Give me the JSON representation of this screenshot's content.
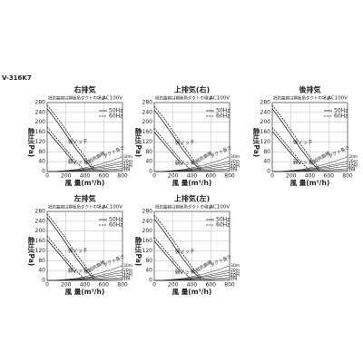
{
  "model": "V-316K7",
  "chart_data": [
    {
      "type": "line",
      "title": "右排気",
      "subtitle": "抵抗曲線は鋼板角ダクトの場合",
      "voltage": "AC100V",
      "xlabel": "風 量(m³/h)",
      "ylabel": "静圧(Pa)",
      "x": [
        0,
        100,
        200,
        300,
        400,
        500,
        600,
        700,
        800
      ],
      "xlim": [
        0,
        800
      ],
      "ylim": [
        0,
        280
      ],
      "xticks": [
        0,
        200,
        400,
        600,
        800
      ],
      "yticks": [
        0,
        40,
        80,
        120,
        160,
        200,
        240,
        280
      ],
      "grid": true,
      "color": "#222222",
      "legend": [
        {
          "name": "50Hz",
          "style": "solid"
        },
        {
          "name": "60Hz",
          "style": "dashed"
        }
      ],
      "notches": [
        {
          "label": "強ノッチ",
          "values": [
            [
              255,
              205,
              150,
              95,
              45,
              5,
              null,
              null,
              null
            ],
            [
              270,
              222,
              168,
              113,
              60,
              14,
              null,
              null,
              null
            ]
          ]
        },
        {
          "label": "弱ノッチ",
          "values": [
            [
              165,
              120,
              75,
              30,
              null,
              null,
              null,
              null,
              null
            ],
            [
              180,
              135,
              88,
              42,
              5,
              null,
              null,
              null,
              null
            ]
          ]
        }
      ],
      "annotations": [
        "ダクト長さ",
        "低抵抗曲線"
      ],
      "duct_curves": [
        {
          "name": "30m",
          "values": [
            0,
            1,
            4,
            8,
            15,
            23,
            34,
            46,
            60
          ]
        },
        {
          "name": "20m",
          "values": [
            0,
            1,
            3,
            6,
            11,
            16,
            24,
            32,
            42
          ]
        },
        {
          "name": "15m",
          "values": [
            0,
            1,
            2,
            5,
            8,
            13,
            18,
            25,
            32
          ]
        },
        {
          "name": "10m",
          "values": [
            0,
            0,
            2,
            3,
            6,
            9,
            12,
            17,
            22
          ]
        },
        {
          "name": "5m",
          "values": [
            0,
            0,
            1,
            2,
            3,
            5,
            7,
            9,
            12
          ]
        },
        {
          "name": "1m",
          "values": [
            0,
            0,
            0,
            1,
            1,
            2,
            3,
            4,
            5
          ]
        }
      ]
    },
    {
      "type": "line",
      "title": "上排気(右)",
      "subtitle": "抵抗曲線は鋼板角ダクトの場合",
      "voltage": "AC100V",
      "xlabel": "風 量(m³/h)",
      "ylabel": "静圧(Pa)",
      "x": [
        0,
        100,
        200,
        300,
        400,
        500,
        600,
        700,
        800
      ],
      "xlim": [
        0,
        800
      ],
      "ylim": [
        0,
        280
      ],
      "xticks": [
        0,
        200,
        400,
        600,
        800
      ],
      "yticks": [
        0,
        40,
        80,
        120,
        160,
        200,
        240,
        280
      ],
      "grid": true,
      "color": "#222222",
      "legend": [
        {
          "name": "50Hz",
          "style": "solid"
        },
        {
          "name": "60Hz",
          "style": "dashed"
        }
      ],
      "notches": [
        {
          "label": "強ノッチ",
          "values": [
            [
              250,
              200,
              145,
              90,
              40,
              3,
              null,
              null,
              null
            ],
            [
              265,
              218,
              163,
              108,
              55,
              12,
              null,
              null,
              null
            ]
          ]
        },
        {
          "label": "弱ノッチ",
          "values": [
            [
              160,
              115,
              70,
              27,
              null,
              null,
              null,
              null,
              null
            ],
            [
              175,
              130,
              84,
              38,
              3,
              null,
              null,
              null,
              null
            ]
          ]
        }
      ],
      "annotations": [
        "ダクト長さ",
        "低抵抗曲線"
      ],
      "duct_curves": [
        {
          "name": "30m",
          "values": [
            0,
            1,
            4,
            8,
            15,
            23,
            34,
            46,
            60
          ]
        },
        {
          "name": "20m",
          "values": [
            0,
            1,
            3,
            6,
            11,
            16,
            24,
            32,
            42
          ]
        },
        {
          "name": "15m",
          "values": [
            0,
            1,
            2,
            5,
            8,
            13,
            18,
            25,
            32
          ]
        },
        {
          "name": "10m",
          "values": [
            0,
            0,
            2,
            3,
            6,
            9,
            12,
            17,
            22
          ]
        },
        {
          "name": "5m",
          "values": [
            0,
            0,
            1,
            2,
            3,
            5,
            7,
            9,
            12
          ]
        },
        {
          "name": "1m",
          "values": [
            0,
            0,
            0,
            1,
            1,
            2,
            3,
            4,
            5
          ]
        }
      ]
    },
    {
      "type": "line",
      "title": "後排気",
      "subtitle": "抵抗曲線は鋼板角ダクトの場合",
      "voltage": "AC100V",
      "xlabel": "風 量(m³/h)",
      "ylabel": "静圧(Pa)",
      "x": [
        0,
        100,
        200,
        300,
        400,
        500,
        600,
        700,
        800
      ],
      "xlim": [
        0,
        800
      ],
      "ylim": [
        0,
        280
      ],
      "xticks": [
        0,
        200,
        400,
        600,
        800
      ],
      "yticks": [
        0,
        40,
        80,
        120,
        160,
        200,
        240,
        280
      ],
      "grid": true,
      "color": "#222222",
      "legend": [
        {
          "name": "50Hz",
          "style": "solid"
        },
        {
          "name": "60Hz",
          "style": "dashed"
        }
      ],
      "notches": [
        {
          "label": "強ノッチ",
          "values": [
            [
              255,
              203,
              148,
              93,
              43,
              4,
              null,
              null,
              null
            ],
            [
              270,
              220,
              166,
              111,
              58,
              13,
              null,
              null,
              null
            ]
          ]
        },
        {
          "label": "弱ノッチ",
          "values": [
            [
              163,
              118,
              73,
              29,
              null,
              null,
              null,
              null,
              null
            ],
            [
              178,
              133,
              86,
              40,
              4,
              null,
              null,
              null,
              null
            ]
          ]
        }
      ],
      "annotations": [
        "ダクト長さ",
        "低抵抗曲線"
      ],
      "duct_curves": [
        {
          "name": "30m",
          "values": [
            0,
            1,
            4,
            8,
            15,
            23,
            34,
            46,
            60
          ]
        },
        {
          "name": "20m",
          "values": [
            0,
            1,
            3,
            6,
            11,
            16,
            24,
            32,
            42
          ]
        },
        {
          "name": "15m",
          "values": [
            0,
            1,
            2,
            5,
            8,
            13,
            18,
            25,
            32
          ]
        },
        {
          "name": "10m",
          "values": [
            0,
            0,
            2,
            3,
            6,
            9,
            12,
            17,
            22
          ]
        },
        {
          "name": "5m",
          "values": [
            0,
            0,
            1,
            2,
            3,
            5,
            7,
            9,
            12
          ]
        },
        {
          "name": "1m",
          "values": [
            0,
            0,
            0,
            1,
            1,
            2,
            3,
            4,
            5
          ]
        }
      ]
    },
    {
      "type": "line",
      "title": "左排気",
      "subtitle": "抵抗曲線は鋼板角ダクトの場合",
      "voltage": "AC100V",
      "xlabel": "風 量(m³/h)",
      "ylabel": "静圧(Pa)",
      "x": [
        0,
        100,
        200,
        300,
        400,
        500,
        600,
        700,
        800
      ],
      "xlim": [
        0,
        800
      ],
      "ylim": [
        0,
        280
      ],
      "xticks": [
        0,
        200,
        400,
        600,
        800
      ],
      "yticks": [
        0,
        40,
        80,
        120,
        160,
        200,
        240,
        280
      ],
      "grid": true,
      "color": "#222222",
      "legend": [
        {
          "name": "50Hz",
          "style": "solid"
        },
        {
          "name": "60Hz",
          "style": "dashed"
        }
      ],
      "notches": [
        {
          "label": "強ノッチ",
          "values": [
            [
              255,
              205,
              150,
              95,
              45,
              5,
              null,
              null,
              null
            ],
            [
              270,
              222,
              168,
              113,
              60,
              14,
              null,
              null,
              null
            ]
          ]
        },
        {
          "label": "弱ノッチ",
          "values": [
            [
              165,
              120,
              75,
              30,
              null,
              null,
              null,
              null,
              null
            ],
            [
              180,
              135,
              88,
              42,
              5,
              null,
              null,
              null,
              null
            ]
          ]
        }
      ],
      "annotations": [
        "ダクト長さ",
        "低抵抗曲線"
      ],
      "duct_curves": [
        {
          "name": "30m",
          "values": [
            0,
            1,
            4,
            8,
            15,
            23,
            34,
            46,
            60
          ]
        },
        {
          "name": "20m",
          "values": [
            0,
            1,
            3,
            6,
            11,
            16,
            24,
            32,
            42
          ]
        },
        {
          "name": "15m",
          "values": [
            0,
            1,
            2,
            5,
            8,
            13,
            18,
            25,
            32
          ]
        },
        {
          "name": "10m",
          "values": [
            0,
            0,
            2,
            3,
            6,
            9,
            12,
            17,
            22
          ]
        },
        {
          "name": "5m",
          "values": [
            0,
            0,
            1,
            2,
            3,
            5,
            7,
            9,
            12
          ]
        },
        {
          "name": "1m",
          "values": [
            0,
            0,
            0,
            1,
            1,
            2,
            3,
            4,
            5
          ]
        }
      ]
    },
    {
      "type": "line",
      "title": "上排気(左)",
      "subtitle": "抵抗曲線は鋼板角ダクトの場合",
      "voltage": "AC100V",
      "xlabel": "風 量(m³/h)",
      "ylabel": "静圧(Pa)",
      "x": [
        0,
        100,
        200,
        300,
        400,
        500,
        600,
        700,
        800
      ],
      "xlim": [
        0,
        800
      ],
      "ylim": [
        0,
        280
      ],
      "xticks": [
        0,
        200,
        400,
        600,
        800
      ],
      "yticks": [
        0,
        40,
        80,
        120,
        160,
        200,
        240,
        280
      ],
      "grid": true,
      "color": "#222222",
      "legend": [
        {
          "name": "50Hz",
          "style": "solid"
        },
        {
          "name": "60Hz",
          "style": "dashed"
        }
      ],
      "notches": [
        {
          "label": "強ノッチ",
          "values": [
            [
              250,
              200,
              145,
              90,
              40,
              3,
              null,
              null,
              null
            ],
            [
              265,
              218,
              163,
              108,
              55,
              12,
              null,
              null,
              null
            ]
          ]
        },
        {
          "label": "弱ノッチ",
          "values": [
            [
              160,
              115,
              70,
              27,
              null,
              null,
              null,
              null,
              null
            ],
            [
              175,
              130,
              84,
              38,
              3,
              null,
              null,
              null,
              null
            ]
          ]
        }
      ],
      "annotations": [
        "ダクト長さ",
        "低抵抗曲線"
      ],
      "duct_curves": [
        {
          "name": "30m",
          "values": [
            0,
            1,
            4,
            8,
            15,
            23,
            34,
            46,
            60
          ]
        },
        {
          "name": "20m",
          "values": [
            0,
            1,
            3,
            6,
            11,
            16,
            24,
            32,
            42
          ]
        },
        {
          "name": "15m",
          "values": [
            0,
            1,
            2,
            5,
            8,
            13,
            18,
            25,
            32
          ]
        },
        {
          "name": "10m",
          "values": [
            0,
            0,
            2,
            3,
            6,
            9,
            12,
            17,
            22
          ]
        },
        {
          "name": "5m",
          "values": [
            0,
            0,
            1,
            2,
            3,
            5,
            7,
            9,
            12
          ]
        },
        {
          "name": "1m",
          "values": [
            0,
            0,
            0,
            1,
            1,
            2,
            3,
            4,
            5
          ]
        }
      ]
    }
  ]
}
